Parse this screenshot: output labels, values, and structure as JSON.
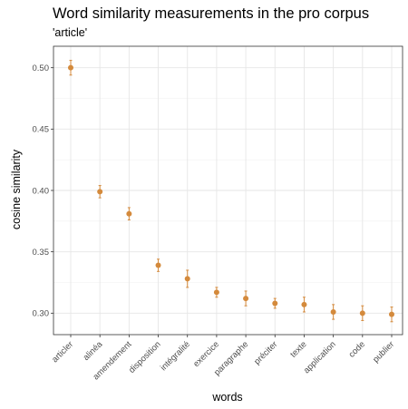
{
  "chart_data": {
    "type": "scatter",
    "title": "Word similarity measurements in the pro corpus",
    "subtitle": "'article'",
    "xlabel": "words",
    "ylabel": "cosine similarity",
    "categories": [
      "articler",
      "alinéa",
      "amendement",
      "disposition",
      "intégralité",
      "exercice",
      "paragraphe",
      "préciter",
      "texte",
      "application",
      "code",
      "publier"
    ],
    "values": [
      0.5,
      0.399,
      0.381,
      0.339,
      0.328,
      0.317,
      0.312,
      0.308,
      0.307,
      0.301,
      0.3,
      0.299
    ],
    "error_low": [
      0.494,
      0.394,
      0.376,
      0.334,
      0.321,
      0.313,
      0.306,
      0.304,
      0.301,
      0.295,
      0.294,
      0.293
    ],
    "error_high": [
      0.506,
      0.404,
      0.386,
      0.344,
      0.335,
      0.321,
      0.318,
      0.312,
      0.313,
      0.307,
      0.306,
      0.305
    ],
    "yticks": [
      0.3,
      0.35,
      0.4,
      0.45,
      0.5
    ],
    "ylim": [
      0.2825,
      0.5175
    ],
    "point_color": "#d48a3c",
    "grid": true,
    "theme": "bw"
  }
}
